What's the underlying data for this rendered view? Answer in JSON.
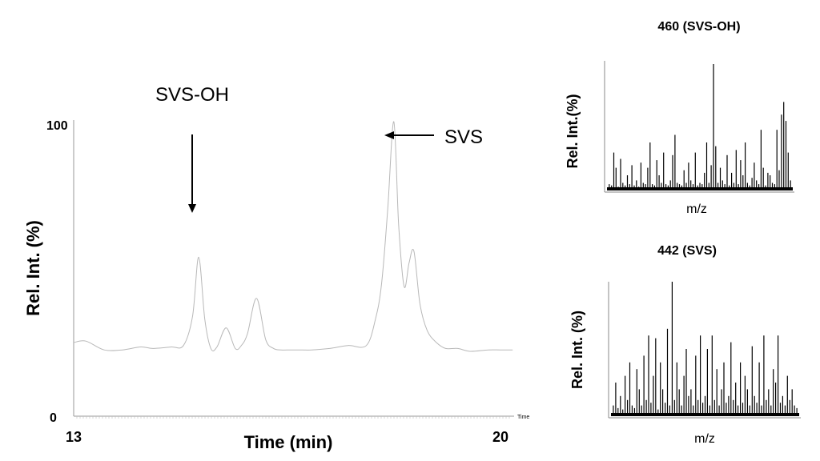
{
  "chart_data": [
    {
      "type": "line",
      "xlabel": "Time (min)",
      "ylabel": "Rel. Int. (%)",
      "x_unit_tag": "Time",
      "xlim": [
        13,
        20
      ],
      "ylim": [
        0,
        100
      ],
      "x_ticks": [
        "13",
        "20"
      ],
      "y_ticks": [
        "0",
        "100"
      ],
      "series": [
        {
          "x": [
            13.0,
            13.2,
            13.5,
            13.8,
            14.1,
            14.3,
            14.6,
            14.8,
            14.95,
            15.05,
            15.15,
            15.25,
            15.35,
            15.5,
            15.65,
            15.75,
            15.85,
            16.0,
            16.15,
            16.28,
            16.4,
            16.55,
            16.7,
            16.9,
            17.2,
            17.5,
            17.8,
            17.95,
            18.05,
            18.15,
            18.25,
            18.33,
            18.42,
            18.5,
            18.58,
            18.68,
            18.8,
            18.95,
            19.1,
            19.3,
            19.5,
            19.8,
            20.0,
            20.2
          ],
          "y": [
            25,
            25.5,
            22.5,
            22.5,
            23.5,
            23,
            23.5,
            24,
            34,
            54,
            33,
            23,
            23.5,
            30,
            23,
            24,
            28,
            40,
            26,
            23,
            22.5,
            22.5,
            22.5,
            22.5,
            23,
            24,
            24,
            33,
            45,
            70,
            100,
            65,
            44,
            52,
            56,
            38,
            29,
            25,
            23,
            23,
            22,
            22.5,
            22.5,
            22.5
          ],
          "color": "#b8b8b8"
        }
      ],
      "annotations": [
        {
          "text": "SVS-OH",
          "x": 15.05,
          "arrow": "down"
        },
        {
          "text": "SVS",
          "x": 18.25,
          "arrow": "left"
        }
      ]
    },
    {
      "type": "bar",
      "title": "460 (SVS-OH)",
      "xlabel": "m/z",
      "ylabel": "Rel. Int.(%)",
      "ylim": [
        0,
        100
      ],
      "values": [
        5,
        4,
        30,
        18,
        3,
        25,
        6,
        4,
        12,
        5,
        20,
        4,
        8,
        3,
        22,
        6,
        5,
        18,
        38,
        5,
        4,
        24,
        12,
        6,
        30,
        5,
        4,
        8,
        28,
        44,
        6,
        5,
        4,
        16,
        6,
        22,
        8,
        5,
        30,
        4,
        6,
        5,
        14,
        38,
        6,
        20,
        100,
        35,
        6,
        18,
        8,
        5,
        28,
        4,
        14,
        6,
        32,
        5,
        24,
        12,
        38,
        6,
        4,
        10,
        22,
        8,
        5,
        48,
        18,
        4,
        14,
        12,
        6,
        5,
        48,
        16,
        60,
        70,
        55,
        30,
        8
      ],
      "color": "#000000"
    },
    {
      "type": "bar",
      "title": "442 (SVS)",
      "xlabel": "m/z",
      "ylabel": "Rel. Int. (%)",
      "ylim": [
        0,
        100
      ],
      "values": [
        8,
        25,
        6,
        15,
        5,
        30,
        12,
        40,
        8,
        6,
        35,
        20,
        8,
        45,
        12,
        60,
        10,
        30,
        58,
        5,
        40,
        20,
        10,
        65,
        8,
        100,
        12,
        40,
        20,
        8,
        30,
        50,
        15,
        20,
        8,
        45,
        12,
        60,
        10,
        15,
        50,
        8,
        60,
        12,
        35,
        8,
        20,
        40,
        10,
        15,
        55,
        12,
        25,
        8,
        40,
        10,
        30,
        20,
        8,
        52,
        15,
        10,
        40,
        8,
        60,
        12,
        20,
        8,
        35,
        25,
        60,
        10,
        15,
        8,
        30,
        12,
        20,
        8,
        6
      ],
      "color": "#000000"
    }
  ]
}
